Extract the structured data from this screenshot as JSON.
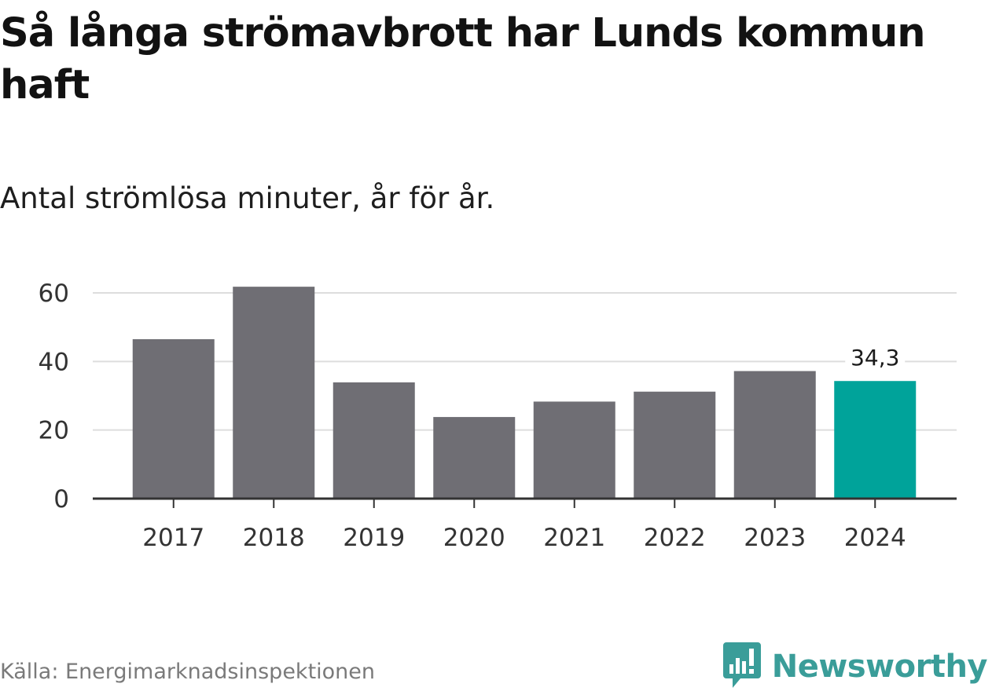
{
  "title": "Så långa strömavbrott har Lunds kommun haft",
  "subtitle": "Antal strömlösa minuter, år för år.",
  "source": "Källa: Energimarknadsinspektionen",
  "brand": {
    "name": "Newsworthy",
    "icon": "newsworthy-logo-icon",
    "color": "#3a9d99"
  },
  "colors": {
    "bar": "#6f6e74",
    "highlight": "#00a39a",
    "grid": "#dddddd",
    "axis": "#333333"
  },
  "chart_data": {
    "type": "bar",
    "categories": [
      "2017",
      "2018",
      "2019",
      "2020",
      "2021",
      "2022",
      "2023",
      "2024"
    ],
    "values": [
      46.5,
      61.8,
      33.9,
      23.8,
      28.3,
      31.2,
      37.2,
      34.3
    ],
    "highlight_index": 7,
    "data_labels": [
      {
        "index": 7,
        "text": "34,3"
      }
    ],
    "title": "Så långa strömavbrott har Lunds kommun haft",
    "subtitle": "Antal strömlösa minuter, år för år.",
    "xlabel": "",
    "ylabel": "",
    "ylim": [
      0,
      60
    ],
    "yticks": [
      0,
      20,
      40,
      60
    ],
    "ytick_labels": [
      "0",
      "20",
      "40",
      "60"
    ],
    "grid": true,
    "legend": "none"
  }
}
